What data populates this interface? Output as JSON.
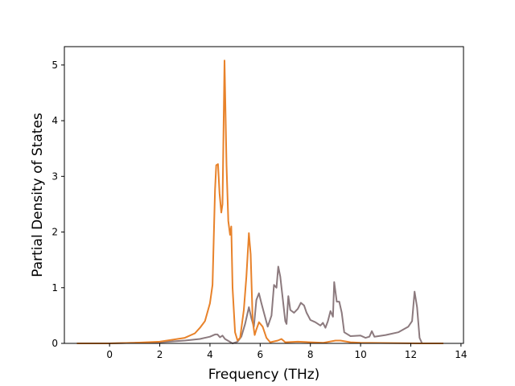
{
  "chart_data": {
    "type": "line",
    "title": "",
    "xlabel": "Frequency (THz)",
    "ylabel": "Partial Density of States",
    "xlim": [
      -1.8,
      14.1
    ],
    "ylim": [
      0,
      5.33
    ],
    "x_ticks": [
      0,
      2,
      4,
      6,
      8,
      10,
      12,
      14
    ],
    "y_ticks": [
      0,
      1,
      2,
      3,
      4,
      5
    ],
    "grid": false,
    "legend": "none",
    "series": [
      {
        "color": "#8c7a7e",
        "points": [
          [
            -1.3,
            0
          ],
          [
            0.0,
            0
          ],
          [
            1.0,
            0.01
          ],
          [
            2.0,
            0.02
          ],
          [
            3.0,
            0.05
          ],
          [
            3.6,
            0.08
          ],
          [
            4.0,
            0.12
          ],
          [
            4.2,
            0.16
          ],
          [
            4.3,
            0.16
          ],
          [
            4.4,
            0.11
          ],
          [
            4.5,
            0.14
          ],
          [
            4.6,
            0.08
          ],
          [
            4.75,
            0.04
          ],
          [
            4.9,
            0.0
          ],
          [
            5.1,
            0.03
          ],
          [
            5.25,
            0.12
          ],
          [
            5.4,
            0.35
          ],
          [
            5.55,
            0.65
          ],
          [
            5.65,
            0.45
          ],
          [
            5.75,
            0.3
          ],
          [
            5.85,
            0.78
          ],
          [
            5.95,
            0.9
          ],
          [
            6.05,
            0.72
          ],
          [
            6.15,
            0.55
          ],
          [
            6.3,
            0.3
          ],
          [
            6.45,
            0.5
          ],
          [
            6.55,
            1.05
          ],
          [
            6.65,
            1.0
          ],
          [
            6.72,
            1.38
          ],
          [
            6.8,
            1.2
          ],
          [
            6.9,
            0.8
          ],
          [
            7.0,
            0.4
          ],
          [
            7.05,
            0.35
          ],
          [
            7.12,
            0.85
          ],
          [
            7.2,
            0.6
          ],
          [
            7.35,
            0.55
          ],
          [
            7.5,
            0.62
          ],
          [
            7.62,
            0.73
          ],
          [
            7.75,
            0.68
          ],
          [
            7.85,
            0.55
          ],
          [
            8.0,
            0.42
          ],
          [
            8.2,
            0.38
          ],
          [
            8.4,
            0.32
          ],
          [
            8.5,
            0.37
          ],
          [
            8.6,
            0.28
          ],
          [
            8.7,
            0.4
          ],
          [
            8.8,
            0.58
          ],
          [
            8.9,
            0.48
          ],
          [
            8.95,
            1.1
          ],
          [
            9.05,
            0.75
          ],
          [
            9.15,
            0.75
          ],
          [
            9.25,
            0.55
          ],
          [
            9.35,
            0.2
          ],
          [
            9.6,
            0.13
          ],
          [
            10.0,
            0.14
          ],
          [
            10.2,
            0.1
          ],
          [
            10.35,
            0.12
          ],
          [
            10.45,
            0.22
          ],
          [
            10.55,
            0.12
          ],
          [
            11.0,
            0.15
          ],
          [
            11.5,
            0.2
          ],
          [
            11.9,
            0.3
          ],
          [
            12.05,
            0.4
          ],
          [
            12.15,
            0.93
          ],
          [
            12.25,
            0.65
          ],
          [
            12.35,
            0.1
          ],
          [
            12.45,
            0.0
          ],
          [
            13.3,
            0
          ]
        ]
      },
      {
        "color": "#e8822a",
        "points": [
          [
            -1.3,
            0
          ],
          [
            0.0,
            0
          ],
          [
            1.0,
            0.01
          ],
          [
            2.0,
            0.03
          ],
          [
            3.0,
            0.1
          ],
          [
            3.4,
            0.18
          ],
          [
            3.6,
            0.28
          ],
          [
            3.8,
            0.4
          ],
          [
            4.0,
            0.72
          ],
          [
            4.1,
            1.05
          ],
          [
            4.2,
            2.75
          ],
          [
            4.25,
            3.2
          ],
          [
            4.32,
            3.22
          ],
          [
            4.38,
            2.7
          ],
          [
            4.45,
            2.35
          ],
          [
            4.5,
            2.5
          ],
          [
            4.58,
            5.08
          ],
          [
            4.66,
            3.2
          ],
          [
            4.73,
            2.2
          ],
          [
            4.8,
            1.95
          ],
          [
            4.85,
            2.1
          ],
          [
            4.9,
            1.0
          ],
          [
            5.0,
            0.2
          ],
          [
            5.1,
            0.05
          ],
          [
            5.2,
            0.1
          ],
          [
            5.35,
            0.6
          ],
          [
            5.45,
            1.2
          ],
          [
            5.55,
            1.98
          ],
          [
            5.62,
            1.6
          ],
          [
            5.7,
            0.4
          ],
          [
            5.78,
            0.15
          ],
          [
            5.85,
            0.25
          ],
          [
            5.95,
            0.38
          ],
          [
            6.1,
            0.3
          ],
          [
            6.25,
            0.1
          ],
          [
            6.4,
            0.02
          ],
          [
            6.7,
            0.05
          ],
          [
            6.85,
            0.08
          ],
          [
            7.0,
            0.02
          ],
          [
            7.5,
            0.03
          ],
          [
            8.0,
            0.02
          ],
          [
            8.5,
            0.01
          ],
          [
            9.0,
            0.05
          ],
          [
            9.2,
            0.05
          ],
          [
            9.6,
            0.02
          ],
          [
            10.0,
            0.01
          ],
          [
            12.4,
            0.0
          ],
          [
            13.3,
            0
          ]
        ]
      }
    ]
  }
}
